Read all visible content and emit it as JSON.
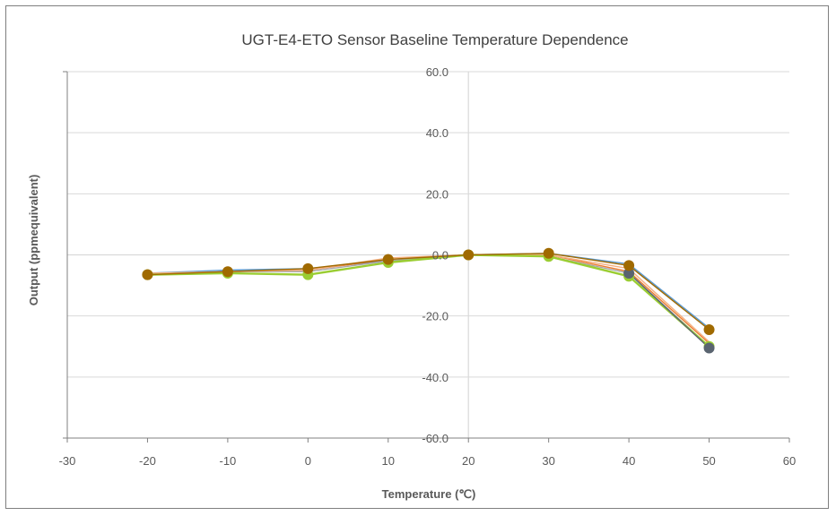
{
  "chart_data": {
    "type": "scatter",
    "title": "UGT-E4-ETO  Sensor Baseline Temperature  Dependence",
    "xlabel": "Temperature (℃)",
    "ylabel": "Output (ppmequivalent)",
    "xlim": [
      -30,
      60
    ],
    "ylim": [
      -60,
      60
    ],
    "xticks": [
      -30,
      -20,
      -10,
      0,
      10,
      20,
      30,
      40,
      50,
      60
    ],
    "yticks": [
      60,
      40,
      20,
      0,
      -20,
      -40,
      -60
    ],
    "xtick_labels": [
      "-30",
      "-20",
      "-10",
      "0",
      "10",
      "20",
      "30",
      "40",
      "50",
      "60"
    ],
    "ytick_labels": [
      "60.0",
      "40.0",
      "20.0",
      "0.0",
      "-20.0",
      "-40.0",
      "-60.0"
    ],
    "grid": true,
    "legend": "none",
    "series": [
      {
        "color": "#5b9bd5",
        "marker": "none",
        "x": [
          -20,
          -10,
          0,
          10,
          20,
          30,
          40,
          50
        ],
        "y": [
          -6.0,
          -5.0,
          -4.5,
          -2.0,
          0.0,
          0.5,
          -3.0,
          -24.0
        ]
      },
      {
        "color": "#ed7d31",
        "marker": "none",
        "x": [
          -20,
          -10,
          0,
          10,
          20,
          30,
          40,
          50
        ],
        "y": [
          -6.5,
          -5.5,
          -5.0,
          -1.5,
          0.0,
          0.0,
          -5.5,
          -29.0
        ]
      },
      {
        "color": "#a5a5a5",
        "marker": "none",
        "x": [
          -20,
          -10,
          0,
          10,
          20,
          30,
          40,
          50
        ],
        "y": [
          -6.5,
          -5.5,
          -5.5,
          -2.0,
          0.0,
          -0.5,
          -6.0,
          -30.0
        ]
      },
      {
        "color": "#f4b183",
        "marker": "none",
        "x": [
          -20,
          -10,
          0,
          10,
          20,
          30,
          40,
          50
        ],
        "y": [
          -6.0,
          -5.5,
          -5.0,
          -1.0,
          0.0,
          0.0,
          -4.5,
          -28.5
        ]
      },
      {
        "color": "#9acd32",
        "marker": "circle",
        "x": [
          -20,
          -10,
          0,
          10,
          20,
          30,
          40,
          50
        ],
        "y": [
          -6.5,
          -6.0,
          -6.5,
          -2.5,
          0.0,
          -0.5,
          -7.0,
          -30.0
        ]
      },
      {
        "color": "#5a6470",
        "marker": "circle",
        "x": [
          40,
          50
        ],
        "y": [
          -6.0,
          -30.5
        ]
      },
      {
        "color": "#a06a00",
        "marker": "circle",
        "x": [
          -20,
          -10,
          0,
          10,
          20,
          30,
          40,
          50
        ],
        "y": [
          -6.5,
          -5.5,
          -4.5,
          -1.5,
          0.0,
          0.5,
          -3.5,
          -24.5
        ]
      }
    ]
  }
}
